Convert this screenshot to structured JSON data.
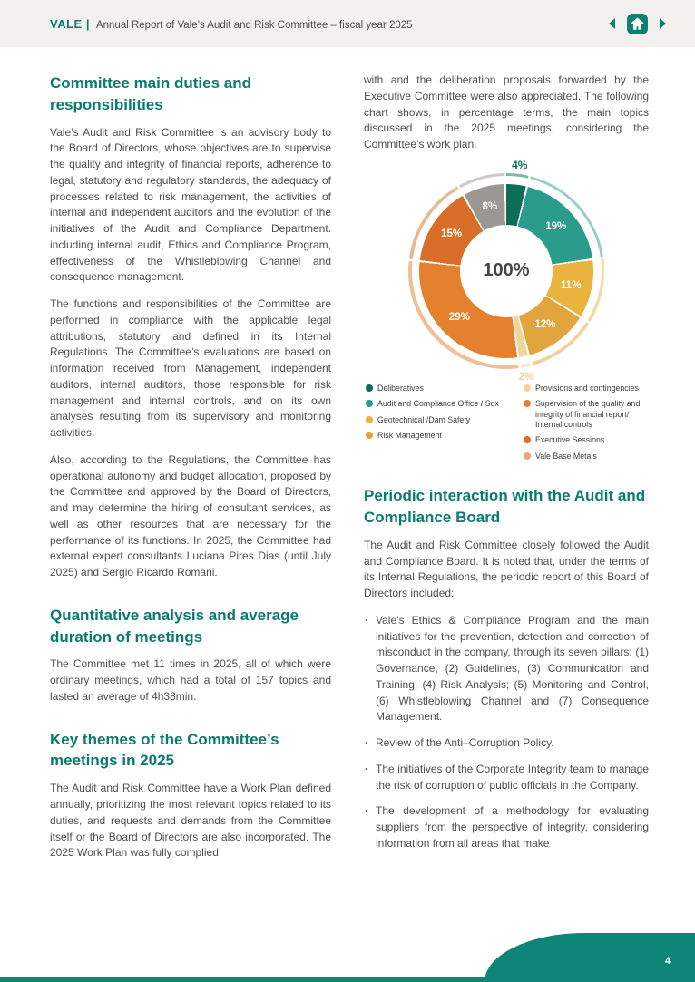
{
  "colors": {
    "accent_teal": "#0a7b6d",
    "footer_teal": "#0f8577",
    "header_bg": "#f2f1ef",
    "body_text": "#4f4f4f"
  },
  "header": {
    "brand": "VALE |",
    "title": "Annual Report of Vale’s Audit and Risk Committee – fiscal year 2025"
  },
  "sections": {
    "duties": {
      "heading": "Committee main duties and responsibilities",
      "paragraphs": [
        "Vale’s Audit and Risk Committee is an advisory body to the Board of Directors, whose objectives are to supervise the quality and integrity of financial reports, adherence to legal, statutory and regulatory standards, the adequacy of processes related to risk management, the activities of internal and independent auditors and the evolution of the initiatives of the Audit and Compliance Department. including internal audit, Ethics and Compliance Program, effectiveness of the Whistleblowing Channel and consequence management.",
        "The functions and responsibilities of the Committee are performed in compliance with the applicable legal attributions, statutory and defined in its Internal Regulations. The Committee’s evaluations are based on information received from Management, independent auditors, internal auditors, those responsible for risk management and internal controls, and on its own analyses resulting from its supervisory and monitoring activities.",
        "Also, according to the Regulations, the Committee has operational autonomy and budget allocation, proposed by the Committee and approved by the Board of Directors, and may determine the hiring of consultant services, as well as other resources that are necessary for the performance of its functions. In 2025, the Committee had external expert consultants Luciana Pires Dias (until July 2025) and Sergio Ricardo Romani."
      ]
    },
    "quantitative": {
      "heading": "Quantitative analysis and average duration of meetings",
      "paragraphs": [
        "The Committee met 11 times in 2025, all of which were ordinary meetings, which had a total of 157 topics and lasted an average of 4h38min."
      ]
    },
    "key_themes": {
      "heading": "Key themes of the Committee’s meetings in 2025",
      "paragraphs": [
        "The Audit and Risk Committee have a Work Plan defined annually, prioritizing the most relevant topics related to its duties, and requests and demands from the Committee itself or the Board of Directors are also incorporated. The 2025 Work Plan was fully complied"
      ]
    },
    "right_intro": "with and the deliberation proposals forwarded by the Executive Committee were also appreciated. The following chart shows, in percentage terms, the main topics discussed in the 2025 meetings, considering the Committee’s work plan.",
    "periodic": {
      "heading": "Periodic interaction with the Audit and Compliance Board",
      "intro": "The Audit and Risk Committee closely followed the Audit and Compliance Board. It is noted that, under the terms of its Internal Regulations, the periodic report of this Board of Directors included:",
      "bullets": [
        "Vale’s Ethics & Compliance Program and the main initiatives for the prevention, detection and correction of misconduct in the company, through its seven pillars: (1) Governance, (2) Guidelines, (3) Communication and Training, (4) Risk Analysis; (5) Monitoring and Control, (6) Whistleblowing Channel and (7) Consequence Management.",
        "Review of the Anti–Corruption Policy.",
        "The initiatives of the Corporate Integrity team to manage the risk of corruption of public officials in the Company.",
        "The development of a methodology for evaluating suppliers from the perspective of integrity, considering information from all areas that make"
      ]
    }
  },
  "chart_data": {
    "type": "pie",
    "subtype": "donut",
    "center_label": "100%",
    "legend_position": "below, two columns",
    "segments": [
      {
        "label": "Deliberatives",
        "value": 4,
        "color": "#0c6e59",
        "label_outside": true
      },
      {
        "label": "Audit and Compliance Office / Sox",
        "value": 19,
        "color": "#2b9c8c"
      },
      {
        "label": "Geotechnical /Dam Safety",
        "value": 11,
        "color": "#eab33f"
      },
      {
        "label": "Risk Management",
        "value": 12,
        "color": "#e2a43c"
      },
      {
        "label": "Provisions and contingencies",
        "value": 2,
        "color": "#f0d49b",
        "label_outside": true
      },
      {
        "label": "Supervision of the quality and integrity of financial report/ Internal controls",
        "value": 29,
        "color": "#e5802e"
      },
      {
        "label": "Executive Sessions",
        "value": 15,
        "color": "#d96e28"
      },
      {
        "label": "Vale Base Metals",
        "value": 8,
        "color": "#9c9790",
        "legend_color": "#efa27e"
      }
    ]
  },
  "footer": {
    "page_number": "4"
  }
}
